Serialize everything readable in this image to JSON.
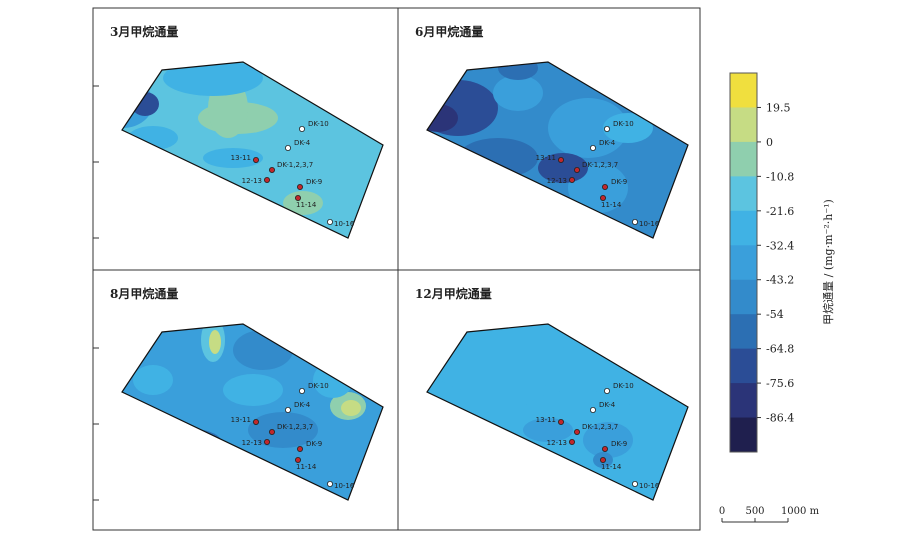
{
  "panels": [
    {
      "title": "3月甲烷通量"
    },
    {
      "title": "6月甲烷通量"
    },
    {
      "title": "8月甲烷通量"
    },
    {
      "title": "12月甲烷通量"
    }
  ],
  "points": [
    {
      "label": "DK-10"
    },
    {
      "label": "DK-4"
    },
    {
      "label": "13-11"
    },
    {
      "label": "DK-1,2,3,7"
    },
    {
      "label": "12-13"
    },
    {
      "label": "DK-9"
    },
    {
      "label": "11-14"
    },
    {
      "label": "10-16"
    }
  ],
  "colorbar": {
    "title": "甲烷通量 / (mg·m⁻²·h⁻¹)",
    "ticks": [
      "19.5",
      "0",
      "-10.8",
      "-21.6",
      "-32.4",
      "-43.2",
      "-54",
      "-64.8",
      "-75.6",
      "-86.4"
    ],
    "colors": [
      "#f0df3e",
      "#c6dc84",
      "#8fcfae",
      "#5cc4e0",
      "#40b2e4",
      "#3a9fdb",
      "#338bcb",
      "#2c6fb3",
      "#2b4d96",
      "#2b3478",
      "#1f1f4e"
    ]
  },
  "scale_bar": {
    "labels": [
      "0",
      "500",
      "1000 m"
    ]
  }
}
